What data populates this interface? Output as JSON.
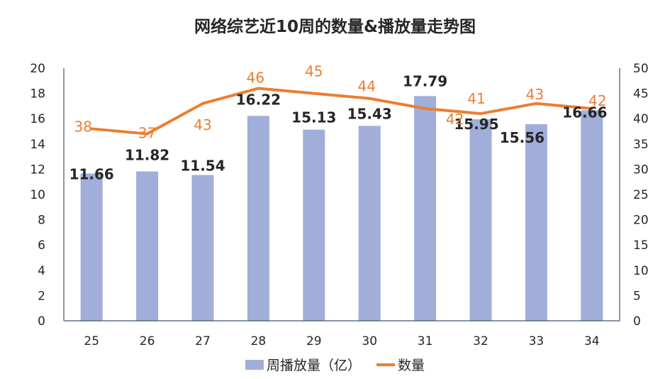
{
  "title": "网络综艺近10周的数量&播放量走势图",
  "legend": {
    "bar_label": "周播放量（亿）",
    "line_label": "数量"
  },
  "colors": {
    "bar": "#a0aed9",
    "line": "#ed7d31",
    "axis": "#44546a",
    "text": "#262626"
  },
  "chart_data": {
    "type": "bar+line",
    "title": "网络综艺近10周的数量&播放量走势图",
    "categories": [
      "25",
      "26",
      "27",
      "28",
      "29",
      "30",
      "31",
      "32",
      "33",
      "34"
    ],
    "series": [
      {
        "name": "周播放量（亿）",
        "type": "bar",
        "axis": "left",
        "values": [
          11.66,
          11.82,
          11.54,
          16.22,
          15.13,
          15.43,
          17.79,
          15.95,
          15.56,
          16.66
        ]
      },
      {
        "name": "数量",
        "type": "line",
        "axis": "right",
        "values": [
          38,
          37,
          43,
          46,
          45,
          44,
          42,
          41,
          43,
          42
        ]
      }
    ],
    "left_axis": {
      "min": 0,
      "max": 20,
      "step": 2,
      "ticks": [
        "0",
        "2",
        "4",
        "6",
        "8",
        "10",
        "12",
        "14",
        "16",
        "18",
        "20"
      ]
    },
    "right_axis": {
      "min": 0,
      "max": 50,
      "step": 5,
      "ticks": [
        "0",
        "5",
        "10",
        "15",
        "20",
        "25",
        "30",
        "35",
        "40",
        "45",
        "50"
      ]
    },
    "xlabel": "",
    "ylabel": "",
    "grid": false,
    "legend_position": "bottom"
  }
}
